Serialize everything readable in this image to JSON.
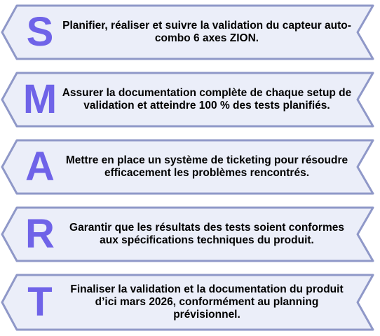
{
  "colors": {
    "fill": "#ebeef9",
    "stroke": "#8f98c8",
    "letter": "#6f63e8"
  },
  "items": [
    {
      "letter": "S",
      "text": "Planifier, réaliser et suivre la validation du capteur auto-combo 6 axes ZION."
    },
    {
      "letter": "M",
      "text": "Assurer la documentation complète de chaque setup de validation et atteindre 100 % des tests planifiés."
    },
    {
      "letter": "A",
      "text": "Mettre en place un système de ticketing pour résoudre efficacement les problèmes rencontrés."
    },
    {
      "letter": "R",
      "text": "Garantir que les résultats des tests soient conformes aux spécifications techniques du produit."
    },
    {
      "letter": "T",
      "text": "Finaliser la validation et la documentation du produit d’ici mars 2026, conformément au planning prévisionnel."
    }
  ]
}
